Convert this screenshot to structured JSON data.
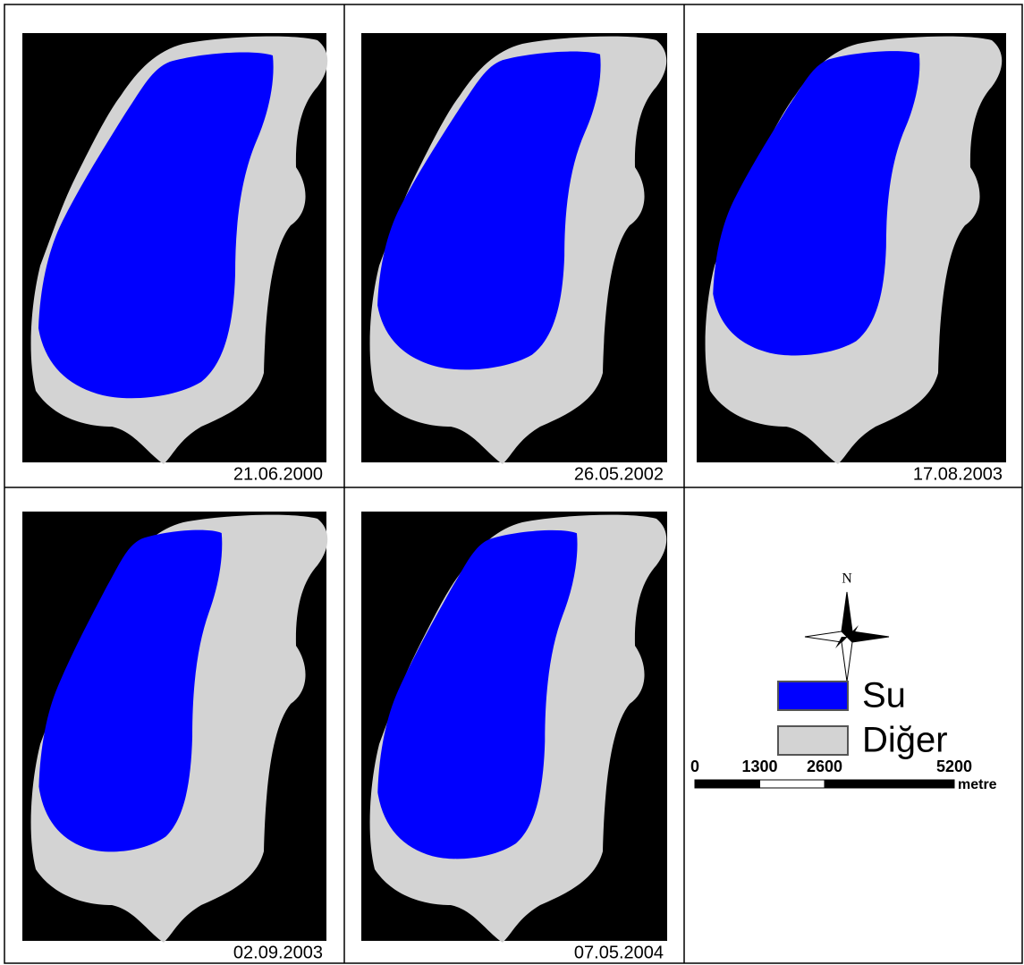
{
  "panels": [
    {
      "date": "21.06.2000"
    },
    {
      "date": "26.05.2002"
    },
    {
      "date": "17.08.2003"
    },
    {
      "date": "02.09.2003"
    },
    {
      "date": "07.05.2004"
    }
  ],
  "north_label": "N",
  "scale_bar": {
    "ticks": [
      0,
      1300,
      2600,
      5200
    ],
    "unit": "metre"
  },
  "legend": [
    {
      "label": "Su",
      "color": "#0000ff"
    },
    {
      "label": "Diğer",
      "color": "#d3d3d3"
    }
  ]
}
